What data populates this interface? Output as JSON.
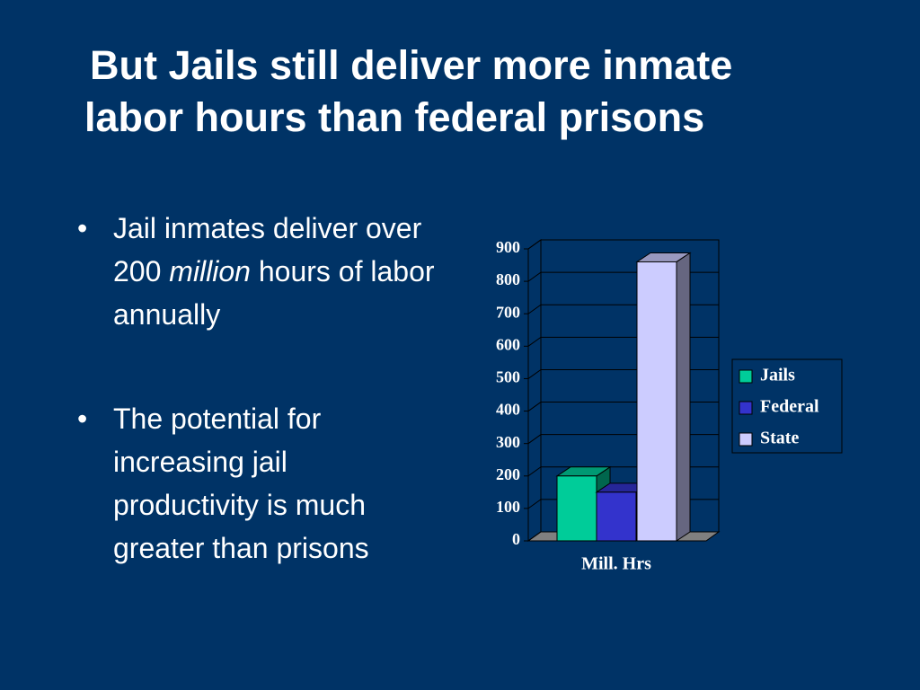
{
  "title_lines": [
    "But Jails still deliver more inmate",
    "labor hours than federal prisons"
  ],
  "bullets": [
    {
      "parts": [
        "Jail inmates deliver over  200 ",
        "million",
        " hours of labor annually"
      ]
    },
    {
      "parts": [
        "The potential for increasing jail productivity is much greater than prisons"
      ]
    }
  ],
  "chart_data": {
    "type": "bar3d",
    "categories": [
      "Mill. Hrs"
    ],
    "series": [
      {
        "name": "Jails",
        "color": "#00cc99",
        "values": [
          200
        ]
      },
      {
        "name": "Federal",
        "color": "#3333cc",
        "values": [
          150
        ]
      },
      {
        "name": "State",
        "color": "#ccccff",
        "values": [
          860
        ]
      }
    ],
    "ylim": [
      0,
      900
    ],
    "yticks": [
      0,
      100,
      200,
      300,
      400,
      500,
      600,
      700,
      800,
      900
    ],
    "grid": true,
    "legend": "right"
  }
}
